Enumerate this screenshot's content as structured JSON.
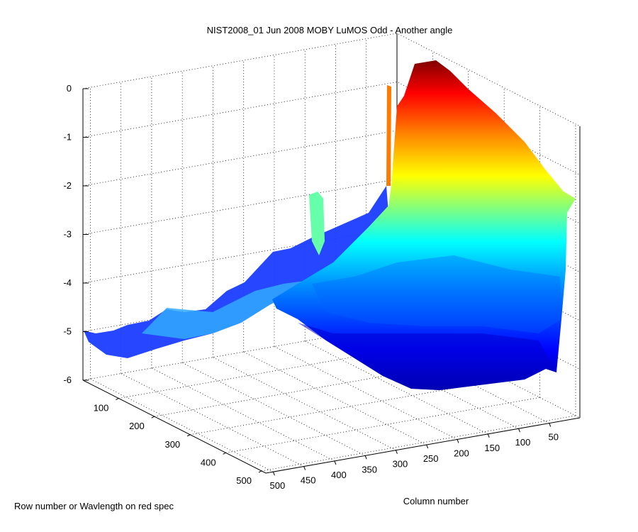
{
  "chart_data": {
    "type": "surface",
    "title": "NIST2008_01 Jun 2008 MOBY LuMOS Odd - Another angle",
    "xlabel": "Column number",
    "ylabel": "Row number or Wavlength on red spec",
    "zlabel": "",
    "xlim": [
      0,
      512
    ],
    "ylim": [
      0,
      512
    ],
    "zlim": [
      -6,
      0
    ],
    "x_ticks": [
      "50",
      "100",
      "150",
      "200",
      "250",
      "300",
      "350",
      "400",
      "450",
      "500"
    ],
    "y_ticks": [
      "100",
      "200",
      "300",
      "400",
      "500"
    ],
    "z_ticks": [
      "0",
      "-1",
      "-2",
      "-3",
      "-4",
      "-5",
      "-6"
    ],
    "grid": true,
    "colormap": [
      "#00008f",
      "#0000ff",
      "#0080ff",
      "#00ffff",
      "#80ff80",
      "#ffff00",
      "#ff8000",
      "#ff0000",
      "#800000"
    ],
    "approx_surface_heights": {
      "near_row_edge_peak": -0.4,
      "near_row_edge_trough": -5.8,
      "far_row_edge_min": -5.3,
      "spike_max": 0.0
    }
  }
}
